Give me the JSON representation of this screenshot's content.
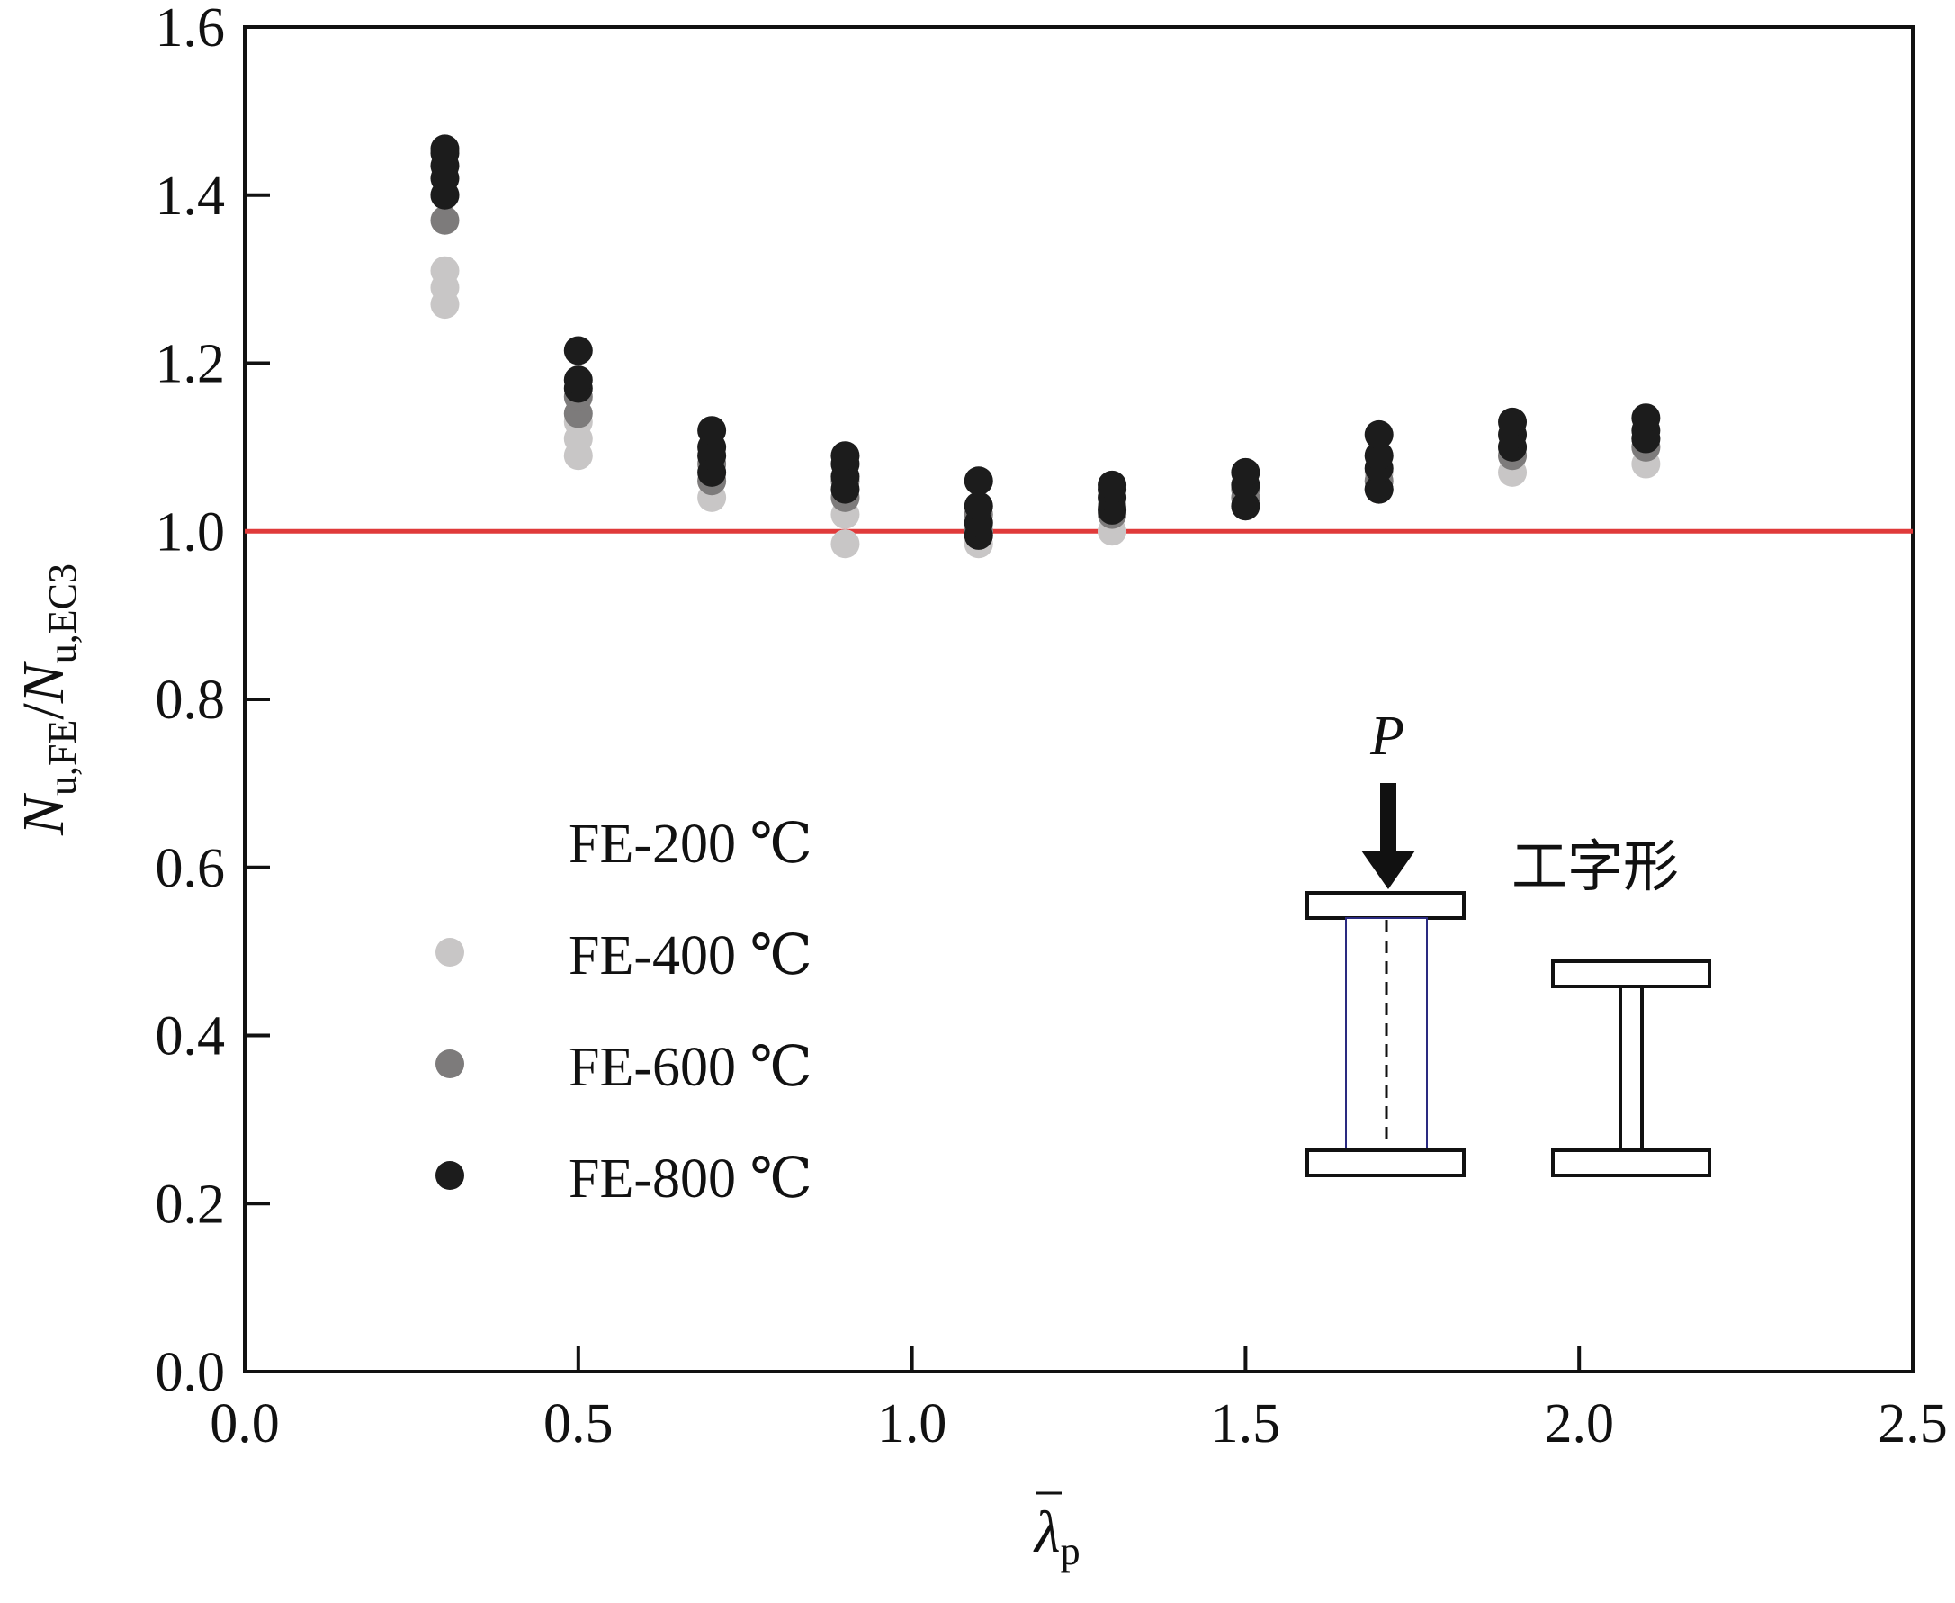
{
  "chart_data": {
    "type": "scatter",
    "xlabel": {
      "main": "λ",
      "sub": "p"
    },
    "ylabel": {
      "n1": "N",
      "sub1": "u,FE",
      "slash": "/",
      "n2": "N",
      "sub2": "u,EC3"
    },
    "xlim": [
      0,
      2.5
    ],
    "ylim": [
      0,
      1.6
    ],
    "xticks": [
      "0.0",
      "0.5",
      "1.0",
      "1.5",
      "2.0",
      "2.5"
    ],
    "yticks": [
      "0.0",
      "0.2",
      "0.4",
      "0.6",
      "0.8",
      "1.0",
      "1.2",
      "1.4",
      "1.6"
    ],
    "grid": false,
    "legend_position": "lower-left",
    "reference_line": {
      "y": 1.0,
      "color": "#e03a3a"
    },
    "series": [
      {
        "name": "FE-200 ℃",
        "color": "#ffffff",
        "points": [
          [
            0.3,
            1.27
          ],
          [
            0.3,
            1.29
          ],
          [
            0.3,
            1.31
          ],
          [
            0.5,
            1.09
          ],
          [
            0.5,
            1.11
          ],
          [
            0.5,
            1.13
          ],
          [
            0.7,
            1.04
          ],
          [
            0.7,
            1.06
          ],
          [
            0.9,
            0.985
          ],
          [
            0.9,
            1.02
          ],
          [
            1.1,
            0.985
          ],
          [
            1.1,
            1.0
          ],
          [
            1.3,
            1.0
          ],
          [
            1.3,
            1.02
          ],
          [
            1.5,
            1.03
          ],
          [
            1.5,
            1.05
          ],
          [
            1.7,
            1.05
          ],
          [
            1.7,
            1.07
          ],
          [
            1.9,
            1.07
          ],
          [
            1.9,
            1.09
          ],
          [
            2.1,
            1.08
          ],
          [
            2.1,
            1.1
          ]
        ]
      },
      {
        "name": "FE-400 ℃",
        "color": "#c8c6c6",
        "points": [
          [
            0.3,
            1.27
          ],
          [
            0.3,
            1.29
          ],
          [
            0.3,
            1.31
          ],
          [
            0.5,
            1.09
          ],
          [
            0.5,
            1.11
          ],
          [
            0.5,
            1.13
          ],
          [
            0.7,
            1.04
          ],
          [
            0.7,
            1.06
          ],
          [
            0.9,
            0.985
          ],
          [
            0.9,
            1.02
          ],
          [
            1.1,
            0.985
          ],
          [
            1.1,
            1.0
          ],
          [
            1.3,
            1.0
          ],
          [
            1.3,
            1.02
          ],
          [
            1.5,
            1.03
          ],
          [
            1.5,
            1.05
          ],
          [
            1.7,
            1.05
          ],
          [
            1.7,
            1.07
          ],
          [
            1.9,
            1.07
          ],
          [
            1.9,
            1.09
          ],
          [
            2.1,
            1.08
          ],
          [
            2.1,
            1.1
          ]
        ]
      },
      {
        "name": "FE-600 ℃",
        "color": "#7d7b7b",
        "points": [
          [
            0.3,
            1.37
          ],
          [
            0.3,
            1.4
          ],
          [
            0.5,
            1.14
          ],
          [
            0.5,
            1.16
          ],
          [
            0.7,
            1.06
          ],
          [
            0.7,
            1.08
          ],
          [
            0.9,
            1.04
          ],
          [
            0.9,
            1.06
          ],
          [
            1.1,
            1.0
          ],
          [
            1.1,
            1.02
          ],
          [
            1.3,
            1.02
          ],
          [
            1.3,
            1.03
          ],
          [
            1.5,
            1.04
          ],
          [
            1.5,
            1.05
          ],
          [
            1.7,
            1.05
          ],
          [
            1.7,
            1.06
          ],
          [
            1.9,
            1.09
          ],
          [
            1.9,
            1.1
          ],
          [
            2.1,
            1.1
          ],
          [
            2.1,
            1.11
          ]
        ]
      },
      {
        "name": "FE-800 ℃",
        "color": "#1c1c1c",
        "points": [
          [
            0.3,
            1.4
          ],
          [
            0.3,
            1.42
          ],
          [
            0.3,
            1.435
          ],
          [
            0.3,
            1.45
          ],
          [
            0.3,
            1.455
          ],
          [
            0.5,
            1.17
          ],
          [
            0.5,
            1.18
          ],
          [
            0.5,
            1.215
          ],
          [
            0.7,
            1.07
          ],
          [
            0.7,
            1.09
          ],
          [
            0.7,
            1.1
          ],
          [
            0.7,
            1.12
          ],
          [
            0.9,
            1.05
          ],
          [
            0.9,
            1.065
          ],
          [
            0.9,
            1.08
          ],
          [
            0.9,
            1.09
          ],
          [
            1.1,
            0.995
          ],
          [
            1.1,
            1.01
          ],
          [
            1.1,
            1.03
          ],
          [
            1.1,
            1.06
          ],
          [
            1.3,
            1.025
          ],
          [
            1.3,
            1.04
          ],
          [
            1.3,
            1.05
          ],
          [
            1.3,
            1.055
          ],
          [
            1.5,
            1.03
          ],
          [
            1.5,
            1.055
          ],
          [
            1.5,
            1.07
          ],
          [
            1.7,
            1.05
          ],
          [
            1.7,
            1.075
          ],
          [
            1.7,
            1.09
          ],
          [
            1.7,
            1.115
          ],
          [
            1.9,
            1.1
          ],
          [
            1.9,
            1.115
          ],
          [
            1.9,
            1.13
          ],
          [
            2.1,
            1.11
          ],
          [
            2.1,
            1.12
          ],
          [
            2.1,
            1.135
          ]
        ]
      }
    ]
  },
  "inset": {
    "load_label": "P",
    "section_label": "工字形"
  }
}
